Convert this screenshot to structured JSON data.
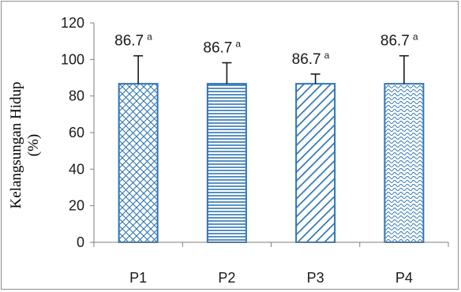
{
  "chart_data": {
    "type": "bar",
    "categories": [
      "P1",
      "P2",
      "P3",
      "P4"
    ],
    "values": [
      86.7,
      86.7,
      86.7,
      86.7
    ],
    "error_plus": [
      15.3,
      11.5,
      5.3,
      15.3
    ],
    "data_labels": [
      "86.7",
      "86.7",
      "86.7",
      "86.7"
    ],
    "significance": [
      "a",
      "a",
      "a",
      "a"
    ],
    "ylabel_line1": "Kelangsungan Hidup",
    "ylabel_line2": "(%)",
    "ylim": [
      0,
      120
    ],
    "yticks": [
      0,
      20,
      40,
      60,
      80,
      100,
      120
    ],
    "grid": false,
    "legend": "none",
    "patterns": [
      "crosshatch",
      "horizontal-lines",
      "diagonal-lines",
      "waves"
    ],
    "colors": {
      "bar_stroke": "#2e75b6",
      "bar_pattern": "#2e75b6",
      "axis": "#7f7f7f",
      "error_bar": "#1a1a1a"
    }
  }
}
